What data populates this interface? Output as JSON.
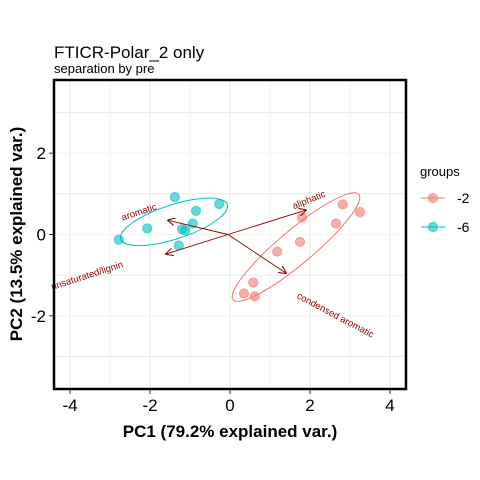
{
  "chart_data": {
    "type": "scatter",
    "title": "FTICR-Polar_2 only",
    "subtitle": "separation by pre",
    "xlabel": "PC1 (79.2% explained var.)",
    "ylabel": "PC2 (13.5% explained var.)",
    "xlim": [
      -4.4,
      4.4
    ],
    "ylim": [
      -3.8,
      3.8
    ],
    "x_ticks": [
      -4,
      -2,
      0,
      2,
      4
    ],
    "y_ticks": [
      -2,
      0,
      2
    ],
    "x_tick_labels": [
      "-4",
      "-2",
      "0",
      "2",
      "4"
    ],
    "y_tick_labels": [
      "-2",
      "0",
      "2"
    ],
    "grid": true,
    "legend": {
      "title": "groups",
      "position": "right",
      "entries": [
        {
          "label": "-2",
          "color": "#F8766D"
        },
        {
          "label": "-6",
          "color": "#00BFC4"
        }
      ]
    },
    "series": [
      {
        "name": "-2",
        "color": "#F8766D",
        "points": [
          {
            "x": 0.35,
            "y": -1.45
          },
          {
            "x": 0.58,
            "y": -1.18
          },
          {
            "x": 0.62,
            "y": -1.52
          },
          {
            "x": 1.18,
            "y": -0.42
          },
          {
            "x": 1.75,
            "y": -0.18
          },
          {
            "x": 1.8,
            "y": 0.42
          },
          {
            "x": 2.65,
            "y": 0.27
          },
          {
            "x": 2.82,
            "y": 0.74
          },
          {
            "x": 3.25,
            "y": 0.55
          }
        ],
        "ellipse": {
          "cx": 1.65,
          "cy": -0.31,
          "rx": 2.05,
          "ry": 0.42,
          "angle_deg": 40
        }
      },
      {
        "name": "-6",
        "color": "#00BFC4",
        "points": [
          {
            "x": -2.78,
            "y": -0.13
          },
          {
            "x": -2.07,
            "y": 0.15
          },
          {
            "x": -1.38,
            "y": 0.92
          },
          {
            "x": -1.28,
            "y": -0.27
          },
          {
            "x": -1.2,
            "y": 0.13
          },
          {
            "x": -1.12,
            "y": 0.1
          },
          {
            "x": -0.93,
            "y": 0.27
          },
          {
            "x": -0.85,
            "y": 0.58
          },
          {
            "x": -0.27,
            "y": 0.75
          }
        ],
        "ellipse": {
          "cx": -1.4,
          "cy": 0.31,
          "rx": 1.4,
          "ry": 0.42,
          "angle_deg": 18
        }
      }
    ],
    "loadings": [
      {
        "label": "aromatic",
        "x": -1.55,
        "y": 0.35,
        "label_x": -2.25,
        "label_y": 0.48,
        "label_angle": -18
      },
      {
        "label": "aliphatic",
        "x": 1.9,
        "y": 0.6,
        "label_x": 2.0,
        "label_y": 0.78,
        "label_angle": -22
      },
      {
        "label": "unsaturated/lignin",
        "x": -1.6,
        "y": -0.48,
        "label_x": -3.55,
        "label_y": -1.08,
        "label_angle": -18
      },
      {
        "label": "condensed aromatic",
        "x": 1.4,
        "y": -0.95,
        "label_x": 2.6,
        "label_y": -2.05,
        "label_angle": 28
      }
    ],
    "loading_origin": {
      "x": -0.05,
      "y": 0.0
    },
    "loading_color": "#8b0000"
  }
}
